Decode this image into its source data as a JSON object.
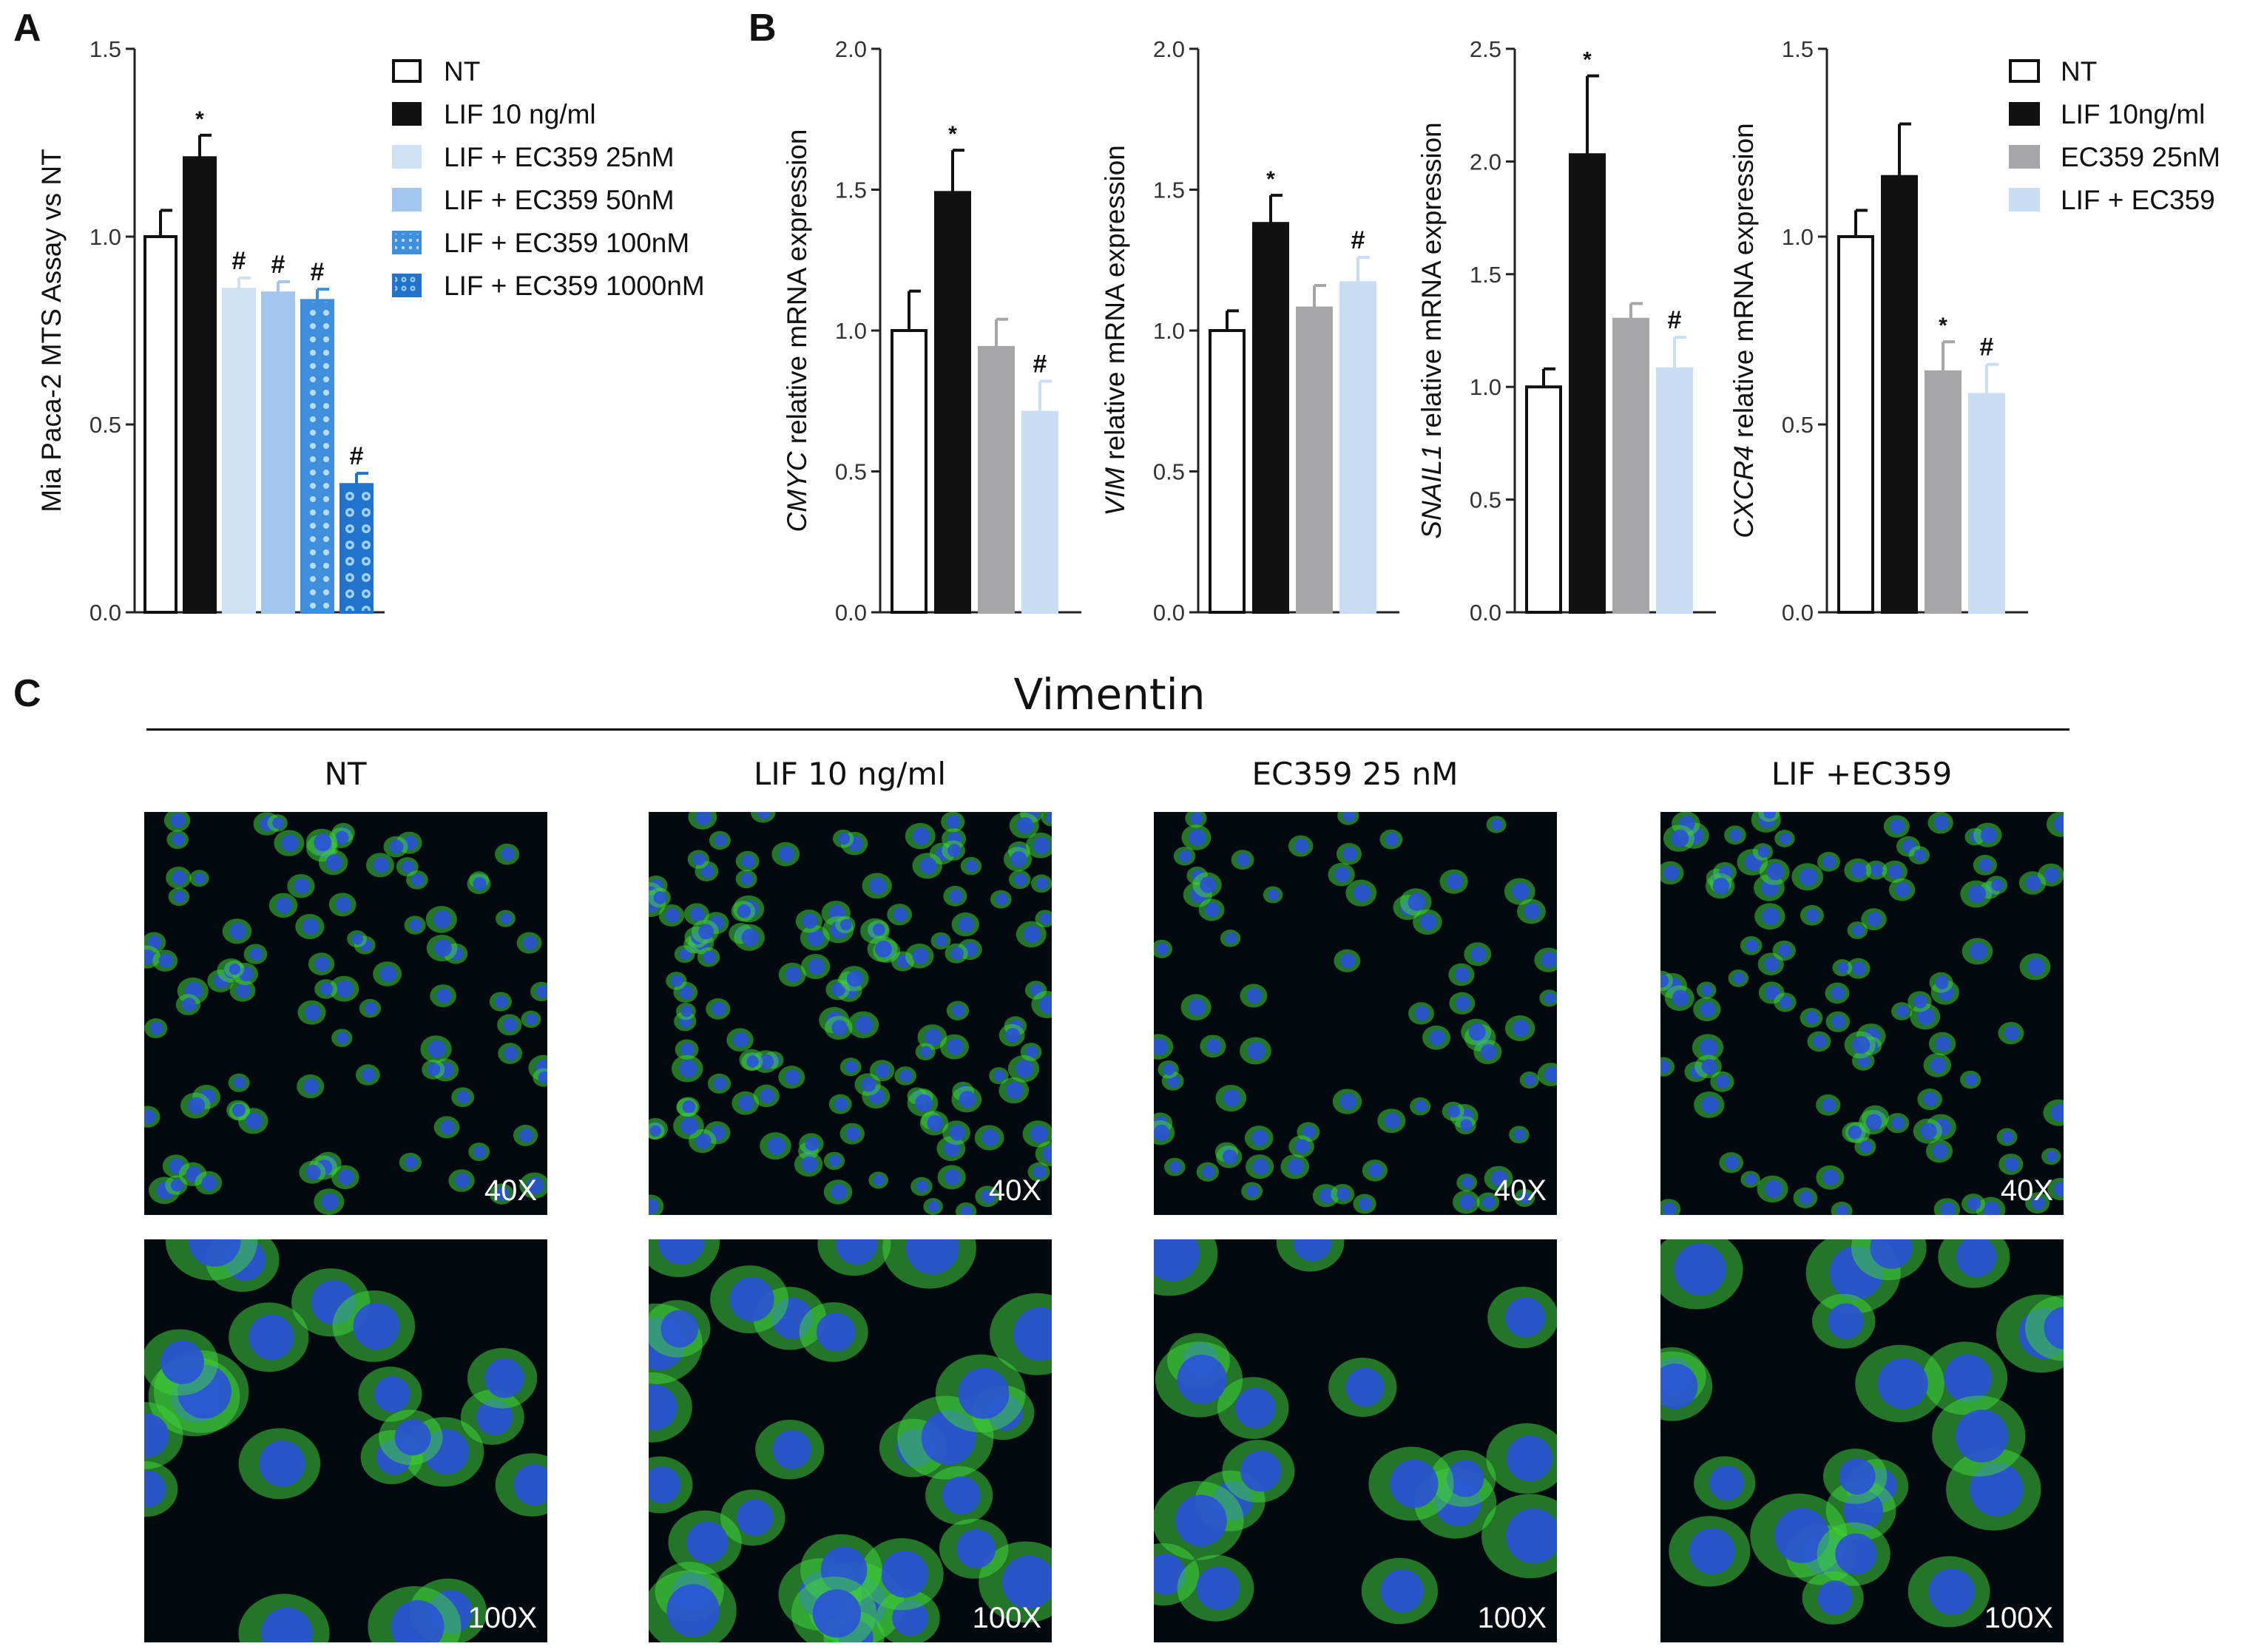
{
  "panel_labels": [
    "A",
    "B",
    "C"
  ],
  "chart_data": [
    {
      "type": "bar",
      "panel": "A",
      "ylabel": "Mia Paca-2 MTS Assay vs NT",
      "ylim": [
        0,
        1.5
      ],
      "yticks": [
        "0.0",
        "0.5",
        "1.0",
        "1.5"
      ],
      "categories": [
        "NT",
        "LIF 10 ng/ml",
        "LIF + EC359 25nM",
        "LIF + EC359 50nM",
        "LIF + EC359 100nM",
        "LIF + EC359 1000nM"
      ],
      "values": [
        1.0,
        1.21,
        0.86,
        0.85,
        0.83,
        0.34
      ],
      "errors": [
        0.07,
        0.06,
        0.03,
        0.03,
        0.03,
        0.03
      ],
      "annotations": [
        "",
        "*",
        "#",
        "#",
        "#",
        "#"
      ],
      "colors": [
        "#ffffff",
        "#111111",
        "#cfe2f5",
        "#a3c6ee",
        "#3f8fdc",
        "#2273cc"
      ],
      "legend": {
        "placement": "right",
        "entries": [
          "NT",
          "LIF 10 ng/ml",
          "LIF + EC359 25nM",
          "LIF + EC359 50nM",
          "LIF + EC359 100nM",
          "LIF + EC359 1000nM"
        ]
      }
    },
    {
      "type": "bar",
      "panel": "B",
      "gene": "CMYC",
      "ylabel_suffix": " relative mRNA expression",
      "ylim": [
        0,
        2.0
      ],
      "yticks": [
        "0.0",
        "0.5",
        "1.0",
        "1.5",
        "2.0"
      ],
      "categories": [
        "NT",
        "LIF 10ng/ml",
        "EC359 25nM",
        "LIF + EC359"
      ],
      "values": [
        1.0,
        1.49,
        0.94,
        0.71
      ],
      "errors": [
        0.14,
        0.15,
        0.1,
        0.11
      ],
      "annotations": [
        "",
        "*",
        "",
        "#"
      ]
    },
    {
      "type": "bar",
      "panel": "B",
      "gene": "VIM",
      "ylabel_suffix": " relative mRNA expression",
      "ylim": [
        0,
        2.0
      ],
      "yticks": [
        "0.0",
        "0.5",
        "1.0",
        "1.5",
        "2.0"
      ],
      "categories": [
        "NT",
        "LIF 10ng/ml",
        "EC359 25nM",
        "LIF + EC359"
      ],
      "values": [
        1.0,
        1.38,
        1.08,
        1.17
      ],
      "errors": [
        0.07,
        0.1,
        0.08,
        0.09
      ],
      "annotations": [
        "",
        "*",
        "",
        "#"
      ]
    },
    {
      "type": "bar",
      "panel": "B",
      "gene": "SNAIL1",
      "ylabel_suffix": " relative mRNA expression",
      "ylim": [
        0,
        2.5
      ],
      "yticks": [
        "0.0",
        "0.5",
        "1.0",
        "1.5",
        "2.0",
        "2.5"
      ],
      "categories": [
        "NT",
        "LIF 10ng/ml",
        "EC359 25nM",
        "LIF + EC359"
      ],
      "values": [
        1.0,
        2.03,
        1.3,
        1.08
      ],
      "errors": [
        0.08,
        0.35,
        0.07,
        0.14
      ],
      "annotations": [
        "",
        "*",
        "",
        "#"
      ]
    },
    {
      "type": "bar",
      "panel": "B",
      "gene": "CXCR4",
      "ylabel_suffix": " relative mRNA expression",
      "ylim": [
        0,
        1.5
      ],
      "yticks": [
        "0.0",
        "0.5",
        "1.0",
        "1.5"
      ],
      "categories": [
        "NT",
        "LIF 10ng/ml",
        "EC359 25nM",
        "LIF + EC359"
      ],
      "values": [
        1.0,
        1.16,
        0.64,
        0.58
      ],
      "errors": [
        0.07,
        0.14,
        0.08,
        0.08
      ],
      "annotations": [
        "",
        "",
        "*",
        "#"
      ]
    }
  ],
  "legend_b": {
    "entries": [
      "NT",
      "LIF 10ng/ml",
      "EC359 25nM",
      "LIF + EC359"
    ],
    "colors": [
      "#ffffff",
      "#111111",
      "#a6a6a8",
      "#c9ddf4"
    ]
  },
  "panel_c": {
    "title": "Vimentin",
    "columns": [
      "NT",
      "LIF 10 ng/ml",
      "EC359 25 nM",
      "LIF +EC359"
    ],
    "magnifications": [
      "40X",
      "100X"
    ],
    "stain_colors": {
      "cytoplasm": "#3fcf3a",
      "nucleus": "#2a52d8",
      "background": "#020a10"
    }
  }
}
